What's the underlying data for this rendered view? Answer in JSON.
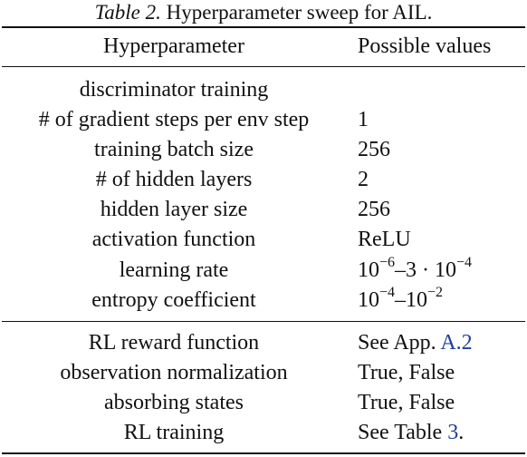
{
  "caption": {
    "label": "Table 2.",
    "text": " Hyperparameter sweep for AIL."
  },
  "header": {
    "col1": "Hyperparameter",
    "col2": "Possible values"
  },
  "group1": {
    "title": "discriminator training",
    "rows": [
      {
        "name": "# of gradient steps per env step",
        "value": "1"
      },
      {
        "name": "training batch size",
        "value": "256"
      },
      {
        "name": "# of hidden layers",
        "value": "2"
      },
      {
        "name": "hidden layer size",
        "value": "256"
      },
      {
        "name": "activation function",
        "value": "ReLU"
      },
      {
        "name": "learning rate",
        "v_base1": "10",
        "v_exp1": "−6",
        "v_mid": "–3 · 10",
        "v_exp2": "−4"
      },
      {
        "name": "entropy coefficient",
        "v_base1": "10",
        "v_exp1": "−4",
        "v_mid": "–10",
        "v_exp2": "−2"
      }
    ]
  },
  "group2": {
    "rows": [
      {
        "name": "RL reward function",
        "value_prefix": "See App. ",
        "value_ref": "A.2"
      },
      {
        "name": "observation normalization",
        "value": "True, False"
      },
      {
        "name": "absorbing states",
        "value": "True, False"
      },
      {
        "name": "RL training",
        "value_prefix": "See Table ",
        "value_ref": "3",
        "value_suffix": "."
      }
    ]
  }
}
